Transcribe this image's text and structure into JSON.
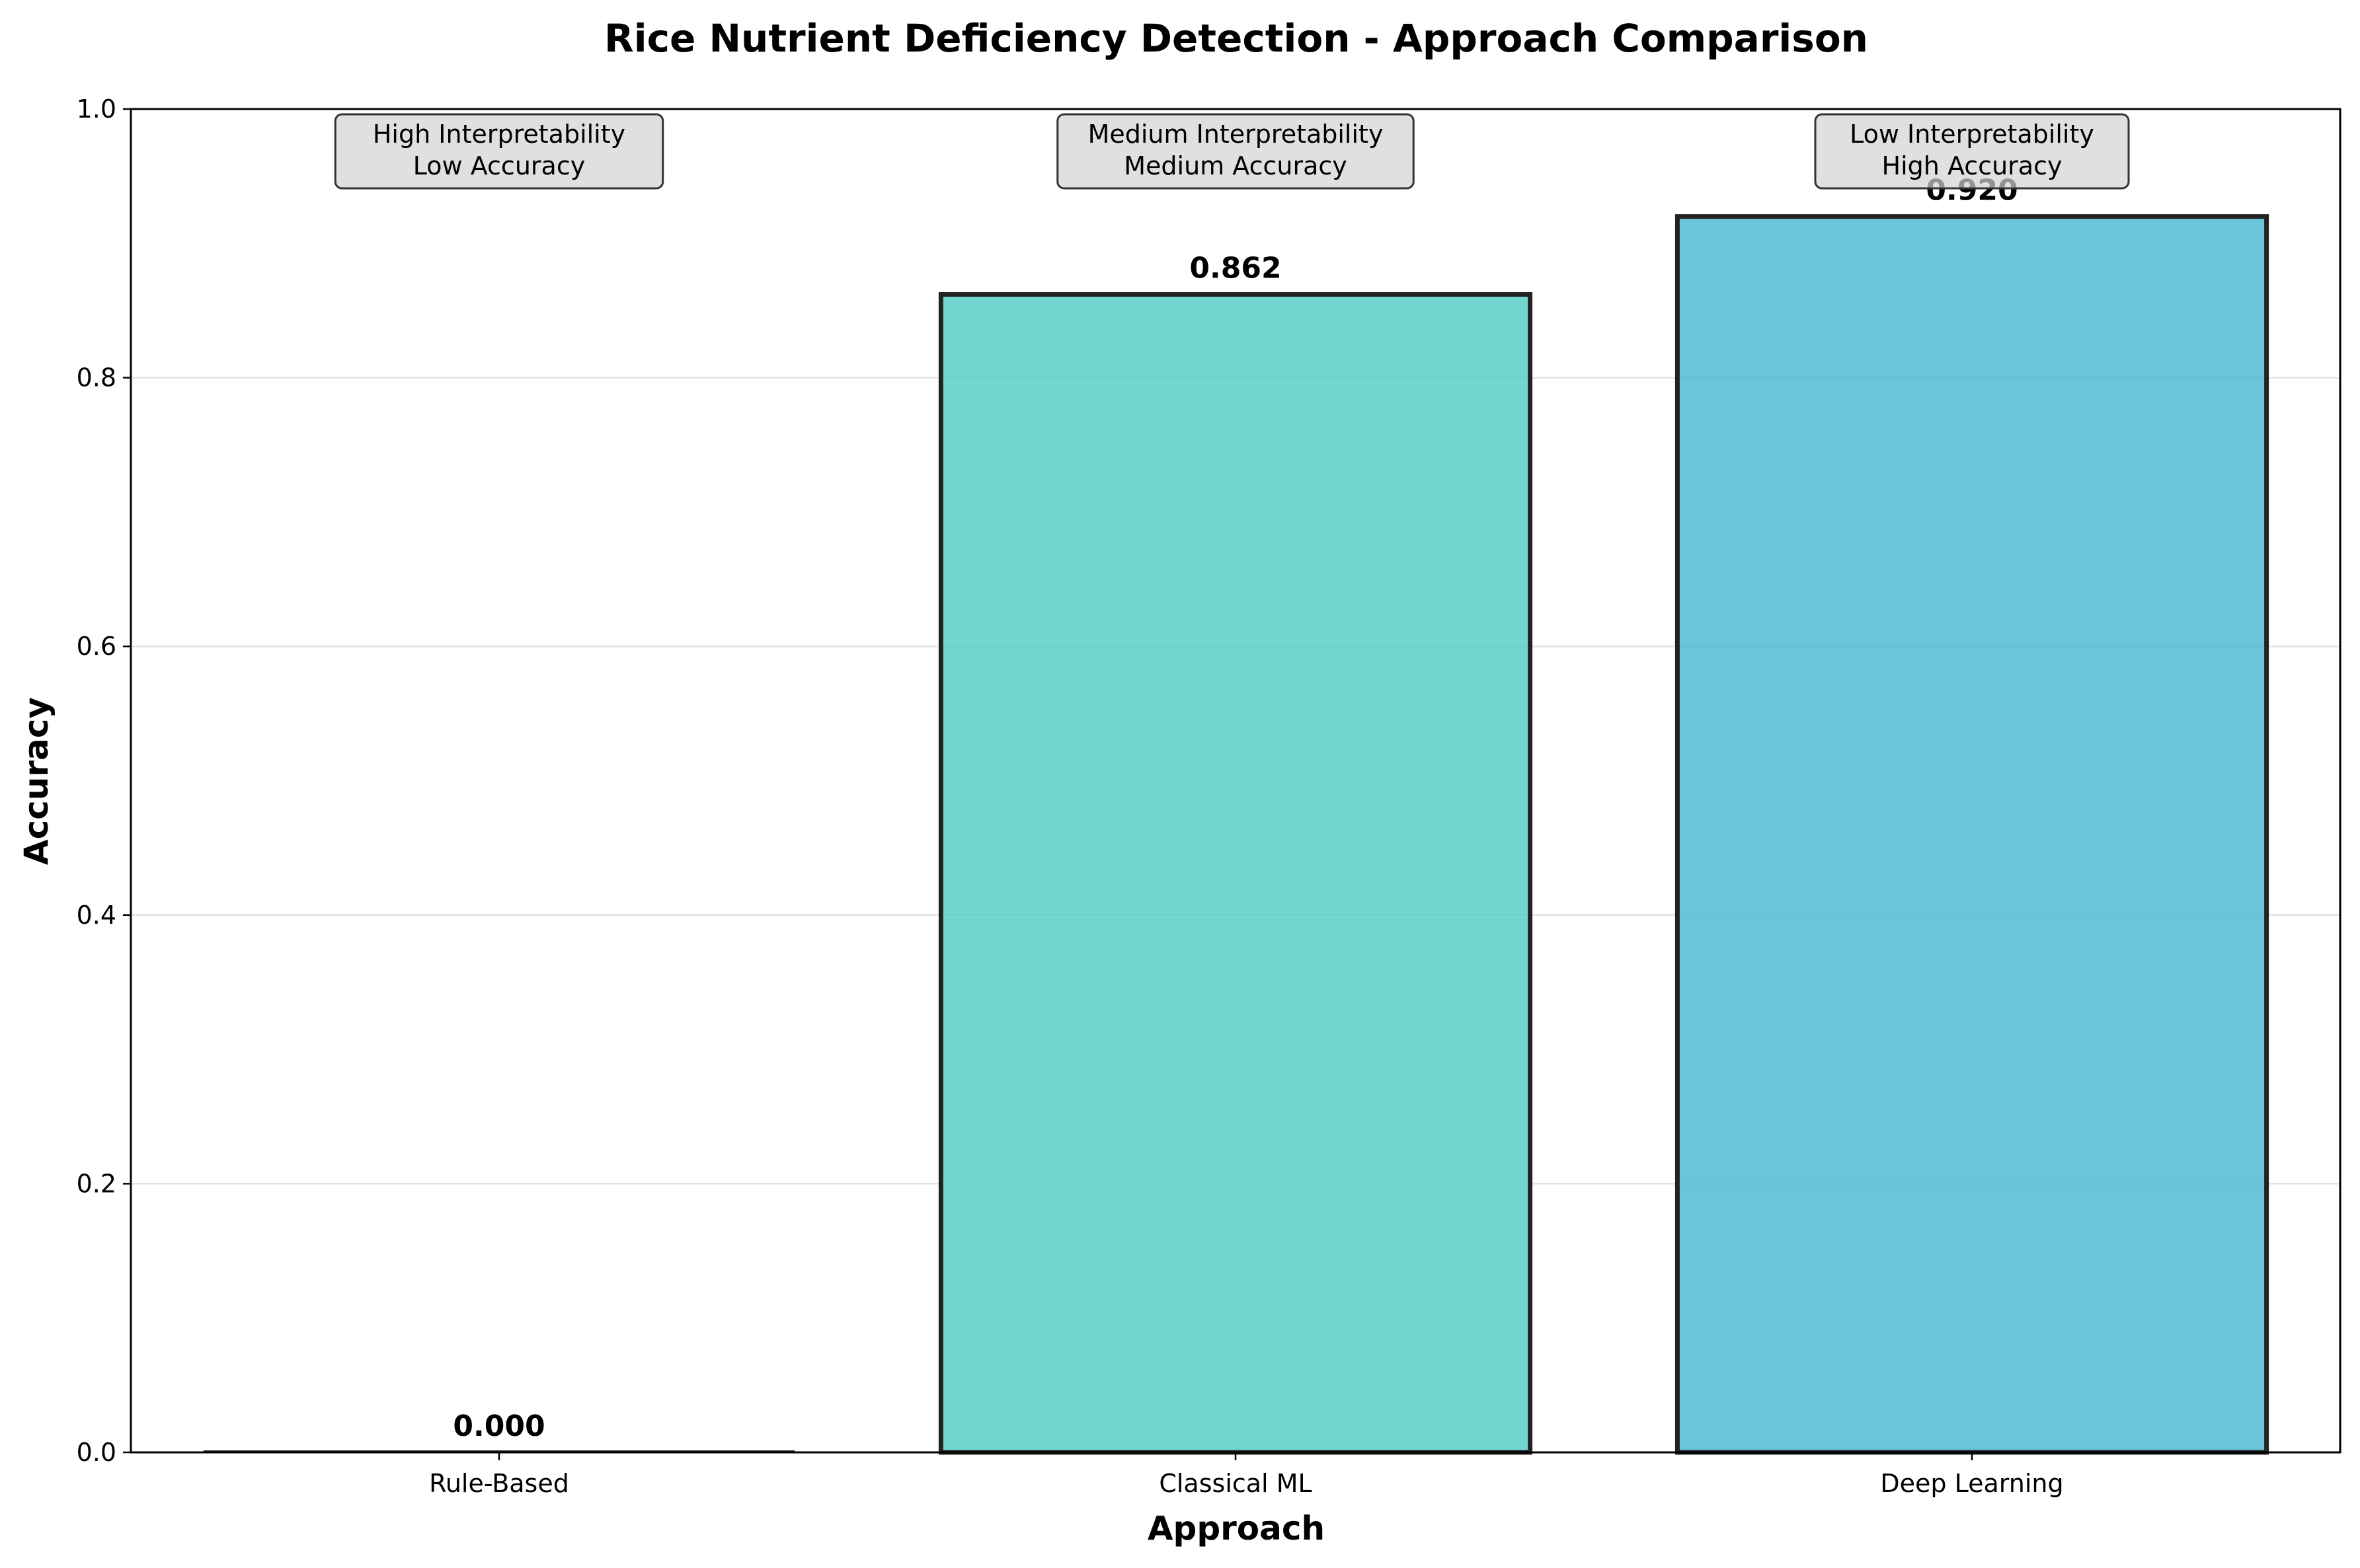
{
  "chart_data": {
    "type": "bar",
    "title": "Rice Nutrient Deficiency Detection - Approach Comparison",
    "xlabel": "Approach",
    "ylabel": "Accuracy",
    "ylim": [
      0,
      1.0
    ],
    "yticks": [
      "0.0",
      "0.2",
      "0.4",
      "0.6",
      "0.8",
      "1.0"
    ],
    "grid": "horizontal",
    "categories": [
      "Rule-Based",
      "Classical ML",
      "Deep Learning"
    ],
    "values": [
      0.0,
      0.862,
      0.92
    ],
    "value_labels": [
      "0.000",
      "0.862",
      "0.920"
    ],
    "colors": [
      "#ff6b6b",
      "#4ecdc4",
      "#45b7d1"
    ],
    "annotations": [
      [
        "High Interpretability",
        "Low Accuracy"
      ],
      [
        "Medium Interpretability",
        "Medium Accuracy"
      ],
      [
        "Low Interpretability",
        "High Accuracy"
      ]
    ]
  }
}
